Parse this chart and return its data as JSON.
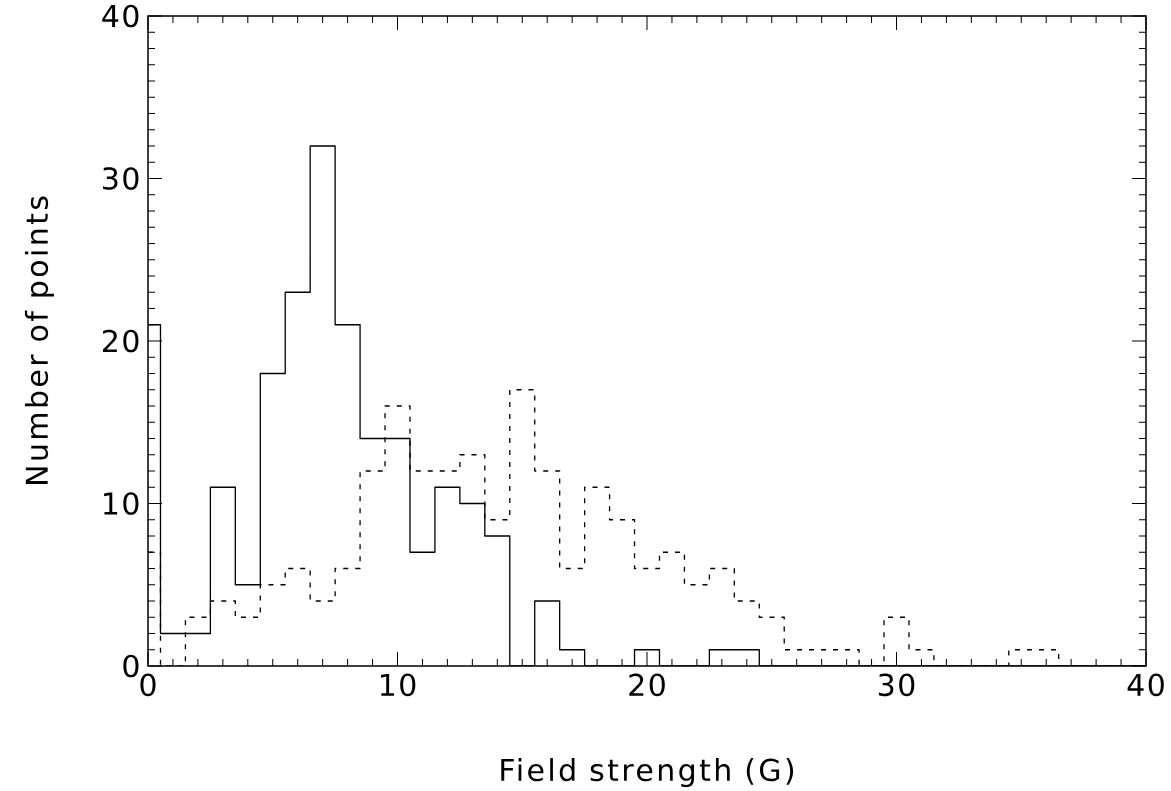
{
  "chart_data": {
    "type": "histogram",
    "xlabel": "Field strength (G)",
    "ylabel": "Number of points",
    "bins": [
      0,
      0.5,
      1.5,
      2.5,
      3.5,
      4.5,
      5.5,
      6.5,
      7.5,
      8.5,
      9.5,
      10.5,
      11.5,
      12.5,
      13.5,
      14.5,
      15.5,
      16.5,
      17.5,
      18.5,
      19.5,
      20.5,
      21.5,
      22.5,
      23.5,
      24.5,
      25.5,
      26.5,
      27.5,
      28.5,
      29.5,
      30.5,
      31.5,
      32.5,
      33.5,
      34.5,
      35.5,
      36.5,
      37.5,
      38.5,
      39.5,
      40
    ],
    "series": [
      {
        "color": "#000000",
        "line_style": "solid",
        "values": [
          21,
          2,
          2,
          11,
          5,
          18,
          23,
          32,
          21,
          14,
          14,
          7,
          11,
          10,
          8,
          0,
          4,
          1,
          0,
          0,
          1,
          0,
          0,
          1,
          1,
          0,
          0,
          0,
          0,
          0,
          0,
          0,
          0,
          0,
          0,
          0,
          0,
          0,
          0,
          0,
          0
        ]
      },
      {
        "color": "#000000",
        "line_style": "dashed",
        "values": [
          7,
          0,
          3,
          4,
          3,
          5,
          6,
          4,
          6,
          12,
          16,
          12,
          12,
          13,
          9,
          17,
          12,
          6,
          11,
          9,
          6,
          7,
          5,
          6,
          4,
          3,
          1,
          1,
          1,
          0,
          3,
          1,
          0,
          0,
          0,
          1,
          1,
          0,
          0,
          0,
          0
        ]
      }
    ],
    "xlim": [
      0,
      40
    ],
    "ylim": [
      0,
      40
    ],
    "xticks": [
      0,
      10,
      20,
      30,
      40
    ],
    "yticks": [
      0,
      10,
      20,
      30,
      40
    ],
    "grid": false
  }
}
